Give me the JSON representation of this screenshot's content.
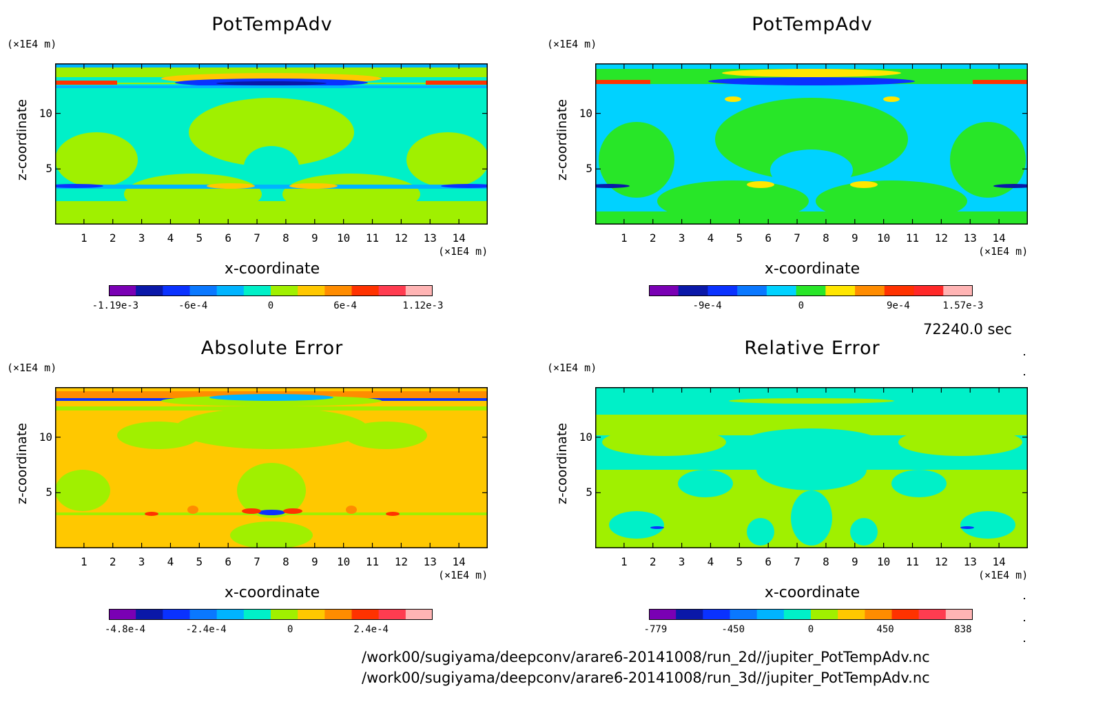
{
  "figure": {
    "time_label": "72240.0 sec",
    "file_paths": [
      "/work00/sugiyama/deepconv/arare6-20141008/run_2d//jupiter_PotTempAdv.nc",
      "/work00/sugiyama/deepconv/arare6-20141008/run_3d//jupiter_PotTempAdv.nc"
    ]
  },
  "palette": [
    "#7a00b4",
    "#0a18a8",
    "#0a32ff",
    "#0a78ff",
    "#00b4ff",
    "#00f0c8",
    "#a0f000",
    "#ffc800",
    "#ff8c00",
    "#ff3200",
    "#ff3c50",
    "#ffb4b4"
  ],
  "palette_b": [
    "#7a00b4",
    "#0a18a8",
    "#0a32ff",
    "#0a78ff",
    "#00d2ff",
    "#28e628",
    "#ffe600",
    "#ff8c00",
    "#ff3200",
    "#ff2828",
    "#ffb4b4"
  ],
  "chart_data": [
    {
      "type": "heatmap",
      "title": "PotTempAdv",
      "xlabel": "x-coordinate",
      "ylabel": "z-coordinate",
      "x_unit": "(×1E4 m)",
      "z_unit": "(×1E4 m)",
      "xticks": [
        "1",
        "2",
        "3",
        "4",
        "5",
        "6",
        "7",
        "8",
        "9",
        "10",
        "11",
        "12",
        "13",
        "14"
      ],
      "zticks": [
        "5",
        "10"
      ],
      "xlim": [
        0,
        15
      ],
      "zlim": [
        0,
        14.5
      ],
      "colorbar_labels": [
        "-1.19e-3",
        "-6e-4",
        "0",
        "6e-4",
        "1.12e-3"
      ],
      "background": "#00f0c8"
    },
    {
      "type": "heatmap",
      "title": "PotTempAdv",
      "xlabel": "x-coordinate",
      "ylabel": "z-coordinate",
      "x_unit": "(×1E4 m)",
      "z_unit": "(×1E4 m)",
      "xticks": [
        "1",
        "2",
        "3",
        "4",
        "5",
        "6",
        "7",
        "8",
        "9",
        "10",
        "11",
        "12",
        "13",
        "14"
      ],
      "zticks": [
        "5",
        "10"
      ],
      "xlim": [
        0,
        15
      ],
      "zlim": [
        0,
        14.5
      ],
      "colorbar_labels": [
        "-9e-4",
        "0",
        "9e-4",
        "1.57e-3"
      ],
      "background": "#00d2ff"
    },
    {
      "type": "heatmap",
      "title": "Absolute Error",
      "xlabel": "x-coordinate",
      "ylabel": "z-coordinate",
      "x_unit": "(×1E4 m)",
      "z_unit": "(×1E4 m)",
      "xticks": [
        "1",
        "2",
        "3",
        "4",
        "5",
        "6",
        "7",
        "8",
        "9",
        "10",
        "11",
        "12",
        "13",
        "14"
      ],
      "zticks": [
        "5",
        "10"
      ],
      "xlim": [
        0,
        15
      ],
      "zlim": [
        0,
        14.5
      ],
      "colorbar_labels": [
        "-4.8e-4",
        "-2.4e-4",
        "0",
        "2.4e-4"
      ],
      "background": "#ffc800"
    },
    {
      "type": "heatmap",
      "title": "Relative Error",
      "xlabel": "x-coordinate",
      "ylabel": "z-coordinate",
      "x_unit": "(×1E4 m)",
      "z_unit": "(×1E4 m)",
      "xticks": [
        "1",
        "2",
        "3",
        "4",
        "5",
        "6",
        "7",
        "8",
        "9",
        "10",
        "11",
        "12",
        "13",
        "14"
      ],
      "zticks": [
        "5",
        "10"
      ],
      "xlim": [
        0,
        15
      ],
      "zlim": [
        0,
        14.5
      ],
      "colorbar_labels": [
        "-779",
        "-450",
        "0",
        "450",
        "838"
      ],
      "background": "#00f0c8"
    }
  ]
}
